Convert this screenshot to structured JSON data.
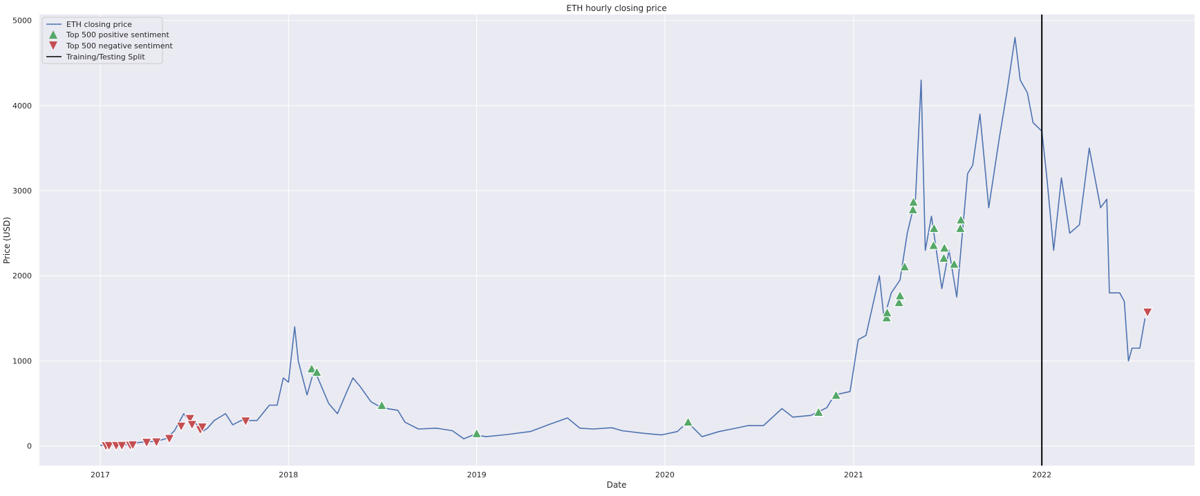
{
  "chart_data": {
    "type": "line",
    "title": "ETH hourly closing price",
    "xlabel": "Date",
    "ylabel": "Price (USD)",
    "xlim": [
      "2016-09-05",
      "2022-10-24"
    ],
    "ylim": [
      -230,
      5070
    ],
    "xticks": [
      {
        "label": "2017",
        "date": "2017-01-01"
      },
      {
        "label": "2018",
        "date": "2018-01-01"
      },
      {
        "label": "2019",
        "date": "2019-01-01"
      },
      {
        "label": "2020",
        "date": "2020-01-01"
      },
      {
        "label": "2021",
        "date": "2021-01-01"
      },
      {
        "label": "2022",
        "date": "2022-01-01"
      }
    ],
    "yticks": [
      0,
      1000,
      2000,
      3000,
      4000,
      5000
    ],
    "grid": true,
    "legend_position": "top-left",
    "legend": [
      {
        "label": "ETH closing price",
        "marker": "line",
        "color": "#4c72b0"
      },
      {
        "label": "Top 500 positive sentiment",
        "marker": "triangle-up",
        "color": "#55a868"
      },
      {
        "label": "Top 500 negative sentiment",
        "marker": "triangle-down",
        "color": "#c44e52"
      },
      {
        "label": "Training/Testing Split",
        "marker": "vline",
        "color": "#000000"
      }
    ],
    "colors": {
      "background": "#eaeaf2",
      "grid": "#ffffff",
      "price": "#4c72b0",
      "positive": "#55a868",
      "negative": "#c44e52",
      "split": "#000000"
    },
    "series": [
      {
        "name": "ETH closing price",
        "points": [
          [
            "2017-01-01",
            8
          ],
          [
            "2017-02-01",
            11
          ],
          [
            "2017-03-01",
            16
          ],
          [
            "2017-03-15",
            40
          ],
          [
            "2017-04-01",
            50
          ],
          [
            "2017-04-20",
            55
          ],
          [
            "2017-05-10",
            90
          ],
          [
            "2017-05-25",
            180
          ],
          [
            "2017-06-12",
            380
          ],
          [
            "2017-06-25",
            280
          ],
          [
            "2017-07-05",
            270
          ],
          [
            "2017-07-16",
            160
          ],
          [
            "2017-07-28",
            210
          ],
          [
            "2017-08-10",
            300
          ],
          [
            "2017-09-01",
            380
          ],
          [
            "2017-09-15",
            250
          ],
          [
            "2017-10-01",
            300
          ],
          [
            "2017-11-01",
            300
          ],
          [
            "2017-11-25",
            480
          ],
          [
            "2017-12-10",
            480
          ],
          [
            "2017-12-22",
            800
          ],
          [
            "2018-01-01",
            750
          ],
          [
            "2018-01-13",
            1400
          ],
          [
            "2018-01-20",
            1000
          ],
          [
            "2018-02-06",
            600
          ],
          [
            "2018-02-20",
            900
          ],
          [
            "2018-03-20",
            500
          ],
          [
            "2018-04-06",
            380
          ],
          [
            "2018-04-25",
            650
          ],
          [
            "2018-05-06",
            800
          ],
          [
            "2018-05-20",
            700
          ],
          [
            "2018-06-10",
            520
          ],
          [
            "2018-07-01",
            450
          ],
          [
            "2018-08-01",
            420
          ],
          [
            "2018-08-15",
            280
          ],
          [
            "2018-09-10",
            200
          ],
          [
            "2018-10-15",
            210
          ],
          [
            "2018-11-15",
            180
          ],
          [
            "2018-12-07",
            85
          ],
          [
            "2018-12-25",
            130
          ],
          [
            "2019-01-20",
            110
          ],
          [
            "2019-03-01",
            135
          ],
          [
            "2019-04-15",
            170
          ],
          [
            "2019-05-20",
            250
          ],
          [
            "2019-06-26",
            330
          ],
          [
            "2019-07-20",
            210
          ],
          [
            "2019-08-15",
            200
          ],
          [
            "2019-09-20",
            215
          ],
          [
            "2019-10-10",
            180
          ],
          [
            "2019-11-20",
            150
          ],
          [
            "2019-12-25",
            130
          ],
          [
            "2020-01-25",
            170
          ],
          [
            "2020-02-14",
            280
          ],
          [
            "2020-03-13",
            110
          ],
          [
            "2020-04-15",
            170
          ],
          [
            "2020-05-10",
            200
          ],
          [
            "2020-06-10",
            240
          ],
          [
            "2020-07-10",
            240
          ],
          [
            "2020-08-15",
            440
          ],
          [
            "2020-09-05",
            340
          ],
          [
            "2020-10-10",
            360
          ],
          [
            "2020-11-10",
            450
          ],
          [
            "2020-11-25",
            600
          ],
          [
            "2020-12-25",
            640
          ],
          [
            "2021-01-10",
            1250
          ],
          [
            "2021-01-25",
            1300
          ],
          [
            "2021-02-20",
            2000
          ],
          [
            "2021-03-01",
            1500
          ],
          [
            "2021-03-15",
            1800
          ],
          [
            "2021-04-01",
            1950
          ],
          [
            "2021-04-15",
            2500
          ],
          [
            "2021-05-01",
            2900
          ],
          [
            "2021-05-12",
            4300
          ],
          [
            "2021-05-20",
            2300
          ],
          [
            "2021-06-01",
            2700
          ],
          [
            "2021-06-21",
            1850
          ],
          [
            "2021-07-05",
            2300
          ],
          [
            "2021-07-20",
            1750
          ],
          [
            "2021-08-10",
            3200
          ],
          [
            "2021-08-20",
            3300
          ],
          [
            "2021-09-03",
            3900
          ],
          [
            "2021-09-20",
            2800
          ],
          [
            "2021-10-10",
            3600
          ],
          [
            "2021-10-25",
            4150
          ],
          [
            "2021-11-10",
            4800
          ],
          [
            "2021-11-20",
            4300
          ],
          [
            "2021-12-04",
            4150
          ],
          [
            "2021-12-15",
            3800
          ],
          [
            "2022-01-01",
            3700
          ],
          [
            "2022-01-10",
            3200
          ],
          [
            "2022-01-24",
            2300
          ],
          [
            "2022-02-08",
            3150
          ],
          [
            "2022-02-24",
            2500
          ],
          [
            "2022-03-15",
            2600
          ],
          [
            "2022-04-03",
            3500
          ],
          [
            "2022-04-25",
            2800
          ],
          [
            "2022-05-07",
            2900
          ],
          [
            "2022-05-12",
            1800
          ],
          [
            "2022-06-01",
            1800
          ],
          [
            "2022-06-10",
            1700
          ],
          [
            "2022-06-18",
            1000
          ],
          [
            "2022-06-25",
            1150
          ],
          [
            "2022-07-10",
            1150
          ],
          [
            "2022-07-20",
            1500
          ]
        ]
      }
    ],
    "positive_sentiment": [
      [
        "2018-02-15",
        900
      ],
      [
        "2018-02-25",
        860
      ],
      [
        "2018-07-01",
        470
      ],
      [
        "2019-01-01",
        140
      ],
      [
        "2020-02-15",
        275
      ],
      [
        "2020-10-25",
        390
      ],
      [
        "2020-11-28",
        590
      ],
      [
        "2021-03-06",
        1500
      ],
      [
        "2021-03-07",
        1560
      ],
      [
        "2021-03-30",
        1680
      ],
      [
        "2021-04-01",
        1760
      ],
      [
        "2021-04-10",
        2100
      ],
      [
        "2021-04-26",
        2770
      ],
      [
        "2021-04-27",
        2860
      ],
      [
        "2021-06-05",
        2350
      ],
      [
        "2021-06-06",
        2550
      ],
      [
        "2021-06-25",
        2200
      ],
      [
        "2021-06-26",
        2320
      ],
      [
        "2021-07-15",
        2130
      ],
      [
        "2021-07-27",
        2550
      ],
      [
        "2021-07-28",
        2650
      ]
    ],
    "negative_sentiment": [
      [
        "2017-01-12",
        10
      ],
      [
        "2017-01-18",
        12
      ],
      [
        "2017-02-01",
        12
      ],
      [
        "2017-02-12",
        13
      ],
      [
        "2017-02-28",
        16
      ],
      [
        "2017-03-05",
        20
      ],
      [
        "2017-04-01",
        50
      ],
      [
        "2017-04-20",
        55
      ],
      [
        "2017-05-15",
        95
      ],
      [
        "2017-06-07",
        240
      ],
      [
        "2017-06-24",
        330
      ],
      [
        "2017-06-28",
        260
      ],
      [
        "2017-07-14",
        200
      ],
      [
        "2017-07-18",
        230
      ],
      [
        "2017-10-10",
        300
      ],
      [
        "2022-07-25",
        1580
      ]
    ],
    "split_date": "2022-01-01"
  }
}
